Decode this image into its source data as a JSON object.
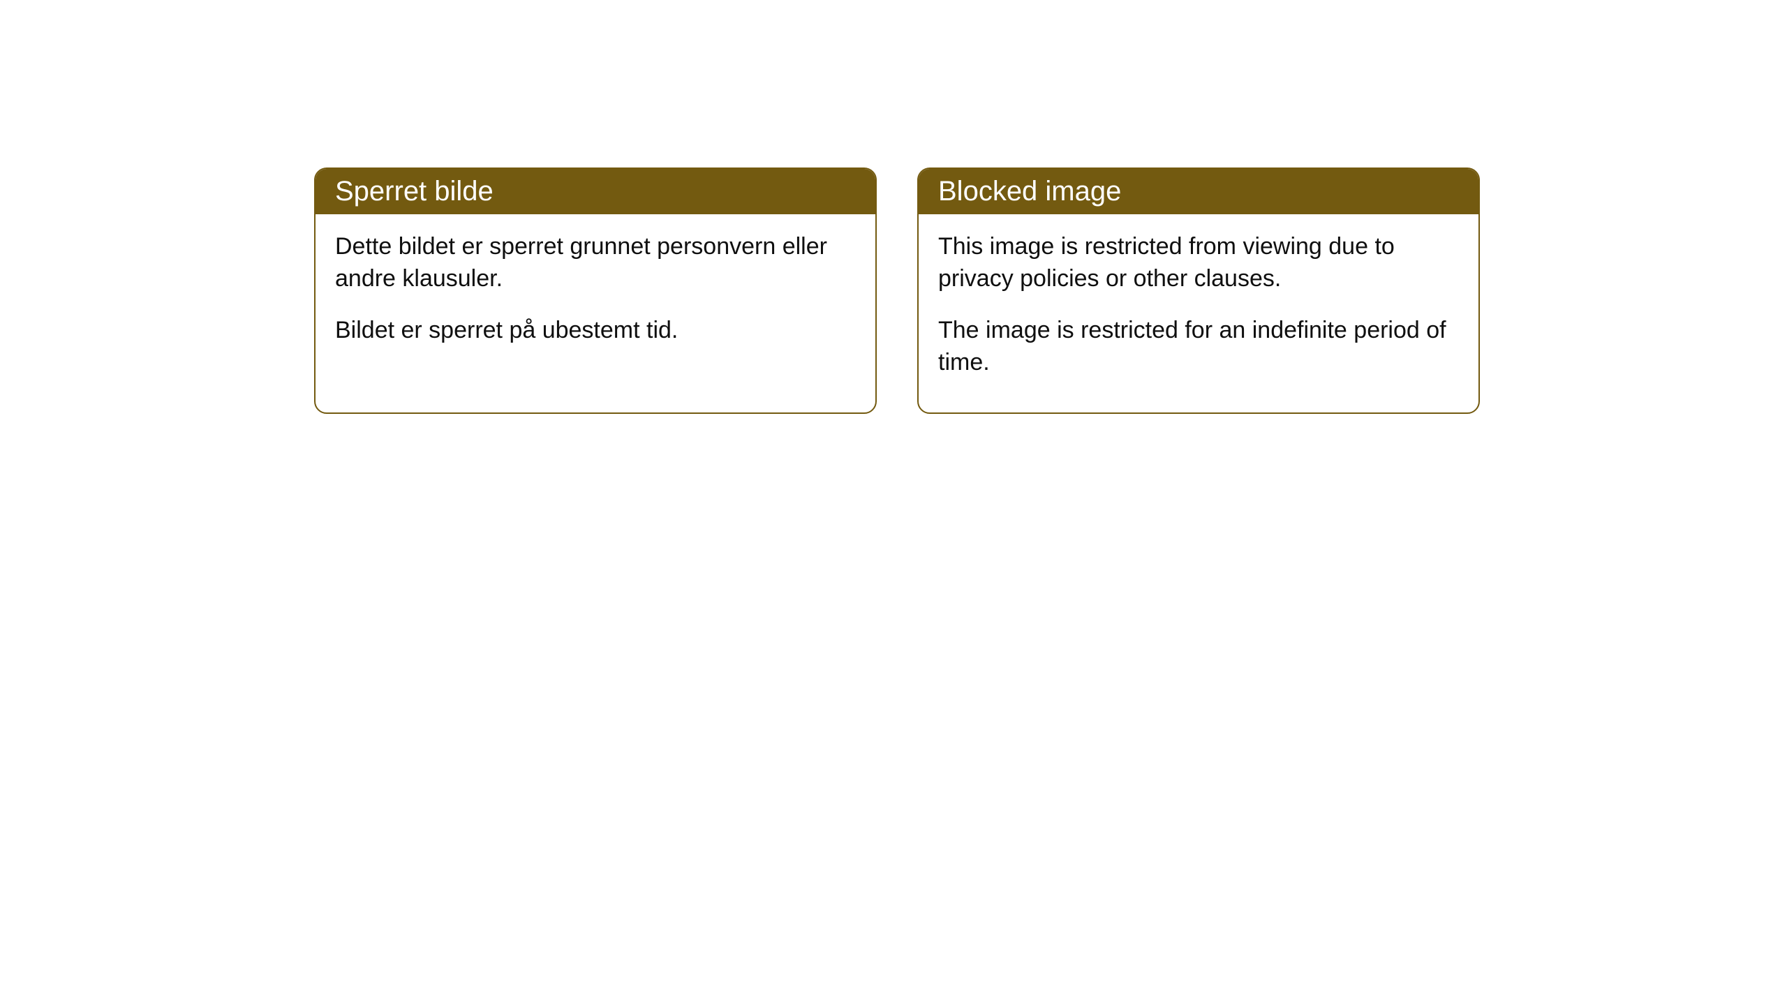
{
  "cards": [
    {
      "title": "Sperret bilde",
      "paragraph1": "Dette bildet er sperret grunnet personvern eller andre klausuler.",
      "paragraph2": "Bildet er sperret på ubestemt tid."
    },
    {
      "title": "Blocked image",
      "paragraph1": "This image is restricted from viewing due to privacy policies or other clauses.",
      "paragraph2": "The image is restricted for an indefinite period of time."
    }
  ],
  "styling": {
    "header_background": "#735a10",
    "header_text_color": "#ffffff",
    "body_text_color": "#0f0f0f",
    "card_border_color": "#735a10",
    "card_background": "#ffffff",
    "page_background": "#ffffff",
    "border_radius": 18,
    "title_fontsize": 40,
    "body_fontsize": 34
  }
}
